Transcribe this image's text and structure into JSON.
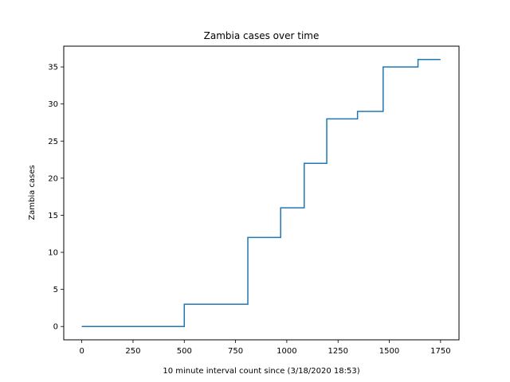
{
  "chart_data": {
    "type": "line",
    "title": "Zambia cases over time",
    "xlabel": "10 minute interval count since (3/18/2020 18:53)",
    "ylabel": "Zambia cases",
    "xlim": [
      -88,
      1840
    ],
    "ylim": [
      -1.8,
      37.8
    ],
    "xticks": [
      0,
      250,
      500,
      750,
      1000,
      1250,
      1500,
      1750
    ],
    "yticks": [
      0,
      5,
      10,
      15,
      20,
      25,
      30,
      35
    ],
    "grid": false,
    "legend": "none",
    "line_color": "#1f77b4",
    "series": [
      {
        "step": "post",
        "x": [
          0,
          500,
          810,
          970,
          1085,
          1195,
          1345,
          1470,
          1640,
          1750
        ],
        "y": [
          0,
          3,
          12,
          16,
          22,
          28,
          29,
          35,
          36,
          36
        ]
      }
    ]
  }
}
